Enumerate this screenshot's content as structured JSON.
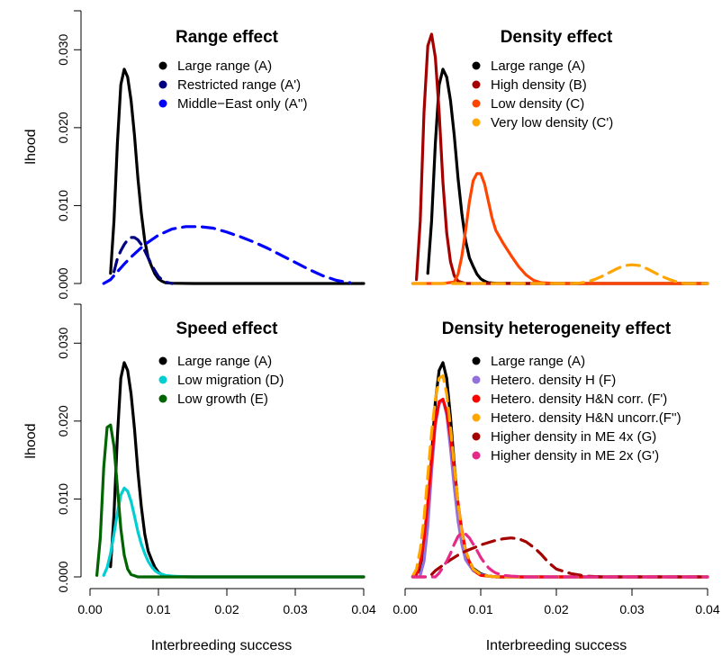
{
  "x_axis_label": "Interbreeding success",
  "y_axis_label": "lhood",
  "chart_data": [
    {
      "type": "line",
      "title": "Range effect",
      "xlabel": "",
      "ylabel": "lhood",
      "xlim": [
        0,
        0.04
      ],
      "ylim": [
        0,
        0.035
      ],
      "x_ticks": [
        "0.00",
        "0.01",
        "0.02",
        "0.03",
        "0.04"
      ],
      "x_tick_values": [
        0,
        0.01,
        0.02,
        0.03,
        0.04
      ],
      "y_ticks": [
        "0.000",
        "0.010",
        "0.020",
        "0.030"
      ],
      "y_tick_values": [
        0,
        0.01,
        0.02,
        0.03
      ],
      "legend": "top-right",
      "series": [
        {
          "name": "Large range (A)",
          "color": "#000000",
          "dash": "solid",
          "x": [
            0.003,
            0.0035,
            0.004,
            0.0045,
            0.005,
            0.0055,
            0.006,
            0.0065,
            0.007,
            0.0075,
            0.008,
            0.0085,
            0.009,
            0.0095,
            0.01,
            0.0105,
            0.011,
            0.012,
            0.015,
            0.02,
            0.03,
            0.04
          ],
          "y": [
            0.0013,
            0.008,
            0.018,
            0.0255,
            0.0275,
            0.0265,
            0.0235,
            0.019,
            0.0135,
            0.009,
            0.0055,
            0.0033,
            0.0022,
            0.0012,
            0.0006,
            0.0003,
            0.0001,
            3e-05,
            0,
            0,
            0,
            0
          ]
        },
        {
          "name": "Restricted range (A')",
          "color": "#000080",
          "dash": "dashed",
          "x": [
            0.0035,
            0.004,
            0.0045,
            0.005,
            0.0055,
            0.006,
            0.0065,
            0.007,
            0.0075,
            0.008,
            0.0085,
            0.009,
            0.0095,
            0.01,
            0.0105,
            0.011,
            0.012
          ],
          "y": [
            0.0015,
            0.0032,
            0.0042,
            0.005,
            0.0056,
            0.0059,
            0.0059,
            0.0056,
            0.005,
            0.0042,
            0.0033,
            0.0024,
            0.0016,
            0.0009,
            0.0005,
            0.0002,
            0
          ]
        },
        {
          "name": "Middle−East only (A'')",
          "color": "#0000FF",
          "dash": "dashed",
          "x": [
            0.002,
            0.003,
            0.004,
            0.005,
            0.006,
            0.008,
            0.01,
            0.012,
            0.014,
            0.016,
            0.018,
            0.02,
            0.022,
            0.024,
            0.026,
            0.028,
            0.03,
            0.032,
            0.034,
            0.036,
            0.038
          ],
          "y": [
            0,
            0.0005,
            0.0015,
            0.0025,
            0.0034,
            0.005,
            0.0062,
            0.007,
            0.0073,
            0.0073,
            0.0071,
            0.0066,
            0.006,
            0.0053,
            0.0045,
            0.0036,
            0.0027,
            0.0018,
            0.001,
            0.0004,
            0.0001
          ]
        }
      ]
    },
    {
      "type": "line",
      "title": "Density effect",
      "xlabel": "",
      "ylabel": "",
      "xlim": [
        0,
        0.04
      ],
      "ylim": [
        0,
        0.035
      ],
      "x_ticks": [
        "0.00",
        "0.01",
        "0.02",
        "0.03",
        "0.04"
      ],
      "x_tick_values": [
        0,
        0.01,
        0.02,
        0.03,
        0.04
      ],
      "y_ticks": [
        "0.000",
        "0.010",
        "0.020",
        "0.030"
      ],
      "y_tick_values": [
        0,
        0.01,
        0.02,
        0.03
      ],
      "legend": "top-right",
      "series": [
        {
          "name": "Large range (A)",
          "color": "#000000",
          "dash": "solid",
          "x": [
            0.003,
            0.0035,
            0.004,
            0.0045,
            0.005,
            0.0055,
            0.006,
            0.0065,
            0.007,
            0.0075,
            0.008,
            0.0085,
            0.009,
            0.0095,
            0.01,
            0.0105,
            0.011,
            0.012,
            0.015,
            0.02,
            0.03,
            0.04
          ],
          "y": [
            0.0013,
            0.008,
            0.018,
            0.0255,
            0.0275,
            0.0265,
            0.0235,
            0.019,
            0.0135,
            0.009,
            0.0055,
            0.0033,
            0.0022,
            0.0012,
            0.0006,
            0.0003,
            0.0001,
            3e-05,
            0,
            0,
            0,
            0
          ]
        },
        {
          "name": "High density (B)",
          "color": "#A50000",
          "dash": "solid",
          "x": [
            0.0015,
            0.002,
            0.0025,
            0.003,
            0.0035,
            0.004,
            0.0045,
            0.005,
            0.0055,
            0.006,
            0.0065,
            0.007,
            0.008,
            0.009,
            0.012,
            0.04
          ],
          "y": [
            0.0005,
            0.008,
            0.022,
            0.0305,
            0.032,
            0.029,
            0.022,
            0.013,
            0.0065,
            0.0028,
            0.001,
            0.0003,
            0,
            0,
            0,
            0
          ]
        },
        {
          "name": "Low density (C)",
          "color": "#FF4500",
          "dash": "solid",
          "x": [
            0.001,
            0.005,
            0.0065,
            0.007,
            0.0075,
            0.008,
            0.0085,
            0.009,
            0.0095,
            0.01,
            0.0105,
            0.011,
            0.0115,
            0.012,
            0.013,
            0.014,
            0.015,
            0.016,
            0.017,
            0.018,
            0.02,
            0.04
          ],
          "y": [
            0,
            0,
            0.0002,
            0.0012,
            0.0035,
            0.0068,
            0.0105,
            0.0132,
            0.0141,
            0.0141,
            0.0128,
            0.0106,
            0.0084,
            0.0068,
            0.0051,
            0.0036,
            0.0022,
            0.0011,
            0.0004,
            0.0001,
            0,
            0
          ]
        },
        {
          "name": "Very low density (C')",
          "color": "#FFA500",
          "dash": "dashed",
          "x": [
            0.001,
            0.022,
            0.023,
            0.024,
            0.025,
            0.026,
            0.027,
            0.028,
            0.029,
            0.03,
            0.031,
            0.032,
            0.033,
            0.034,
            0.035,
            0.036,
            0.037,
            0.04
          ],
          "y": [
            0,
            0,
            5e-05,
            0.0002,
            0.0005,
            0.0009,
            0.0014,
            0.0019,
            0.0023,
            0.0024,
            0.0023,
            0.0019,
            0.0014,
            0.0009,
            0.0005,
            0.0002,
            0,
            0
          ]
        }
      ]
    },
    {
      "type": "line",
      "title": "Speed effect",
      "xlabel": "Interbreeding success",
      "ylabel": "lhood",
      "xlim": [
        0,
        0.04
      ],
      "ylim": [
        0,
        0.035
      ],
      "x_ticks": [
        "0.00",
        "0.01",
        "0.02",
        "0.03",
        "0.04"
      ],
      "x_tick_values": [
        0,
        0.01,
        0.02,
        0.03,
        0.04
      ],
      "y_ticks": [
        "0.000",
        "0.010",
        "0.020",
        "0.030"
      ],
      "y_tick_values": [
        0,
        0.01,
        0.02,
        0.03
      ],
      "legend": "top-right",
      "series": [
        {
          "name": "Large range (A)",
          "color": "#000000",
          "dash": "solid",
          "x": [
            0.003,
            0.0035,
            0.004,
            0.0045,
            0.005,
            0.0055,
            0.006,
            0.0065,
            0.007,
            0.0075,
            0.008,
            0.0085,
            0.009,
            0.0095,
            0.01,
            0.0105,
            0.011,
            0.012,
            0.015,
            0.02,
            0.03,
            0.04
          ],
          "y": [
            0.0013,
            0.008,
            0.018,
            0.0255,
            0.0275,
            0.0265,
            0.0235,
            0.019,
            0.0135,
            0.009,
            0.0055,
            0.0033,
            0.0022,
            0.0012,
            0.0006,
            0.0003,
            0.0001,
            3e-05,
            0,
            0,
            0,
            0
          ]
        },
        {
          "name": "Low migration (D)",
          "color": "#00CED1",
          "dash": "solid",
          "x": [
            0.002,
            0.0025,
            0.003,
            0.0035,
            0.004,
            0.0045,
            0.005,
            0.0055,
            0.006,
            0.0065,
            0.007,
            0.0075,
            0.008,
            0.0085,
            0.009,
            0.0095,
            0.01,
            0.011,
            0.012,
            0.014,
            0.02,
            0.04
          ],
          "y": [
            0.0002,
            0.0012,
            0.003,
            0.0055,
            0.0082,
            0.0105,
            0.0114,
            0.011,
            0.0097,
            0.0078,
            0.0058,
            0.0042,
            0.003,
            0.002,
            0.0013,
            0.0008,
            0.0005,
            0.0002,
            0.0001,
            0,
            0,
            0
          ]
        },
        {
          "name": "Low growth (E)",
          "color": "#006400",
          "dash": "solid",
          "x": [
            0.001,
            0.0015,
            0.002,
            0.0025,
            0.003,
            0.0035,
            0.004,
            0.0045,
            0.005,
            0.0055,
            0.006,
            0.007,
            0.008,
            0.01,
            0.02,
            0.04
          ],
          "y": [
            0.0002,
            0.005,
            0.014,
            0.0192,
            0.0195,
            0.0168,
            0.0115,
            0.0062,
            0.0028,
            0.001,
            0.0003,
            0,
            0,
            0,
            0,
            0
          ]
        }
      ]
    },
    {
      "type": "line",
      "title": "Density heterogeneity effect",
      "xlabel": "Interbreeding success",
      "ylabel": "",
      "xlim": [
        0,
        0.04
      ],
      "ylim": [
        0,
        0.035
      ],
      "x_ticks": [
        "0.00",
        "0.01",
        "0.02",
        "0.03",
        "0.04"
      ],
      "x_tick_values": [
        0,
        0.01,
        0.02,
        0.03,
        0.04
      ],
      "y_ticks": [
        "0.000",
        "0.010",
        "0.020",
        "0.030"
      ],
      "y_tick_values": [
        0,
        0.01,
        0.02,
        0.03
      ],
      "legend": "top-right",
      "series": [
        {
          "name": "Large range (A)",
          "color": "#000000",
          "dash": "solid",
          "x": [
            0.002,
            0.0025,
            0.003,
            0.0035,
            0.004,
            0.0045,
            0.005,
            0.0055,
            0.006,
            0.0065,
            0.007,
            0.0075,
            0.008,
            0.009,
            0.01,
            0.011,
            0.012,
            0.015,
            0.04
          ],
          "y": [
            0.0005,
            0.003,
            0.008,
            0.0155,
            0.0225,
            0.0265,
            0.0275,
            0.0255,
            0.0205,
            0.0145,
            0.0092,
            0.0053,
            0.0028,
            0.0011,
            0.0004,
            0.0001,
            0,
            0,
            0
          ]
        },
        {
          "name": "Hetero. density H (F)",
          "color": "#9370DB",
          "dash": "solid",
          "x": [
            0.002,
            0.0025,
            0.003,
            0.0035,
            0.004,
            0.0045,
            0.005,
            0.0055,
            0.006,
            0.0065,
            0.007,
            0.0075,
            0.008,
            0.009,
            0.01,
            0.011,
            0.012,
            0.015,
            0.04
          ],
          "y": [
            0.0002,
            0.002,
            0.0065,
            0.0135,
            0.0195,
            0.0222,
            0.0228,
            0.0208,
            0.0165,
            0.0115,
            0.0072,
            0.0042,
            0.0022,
            0.0008,
            0.0003,
            0.0001,
            0,
            0,
            0
          ]
        },
        {
          "name": "Hetero. density H&N corr. (F')",
          "color": "#FF0000",
          "dash": "solid",
          "x": [
            0.0015,
            0.002,
            0.0025,
            0.003,
            0.0035,
            0.004,
            0.0045,
            0.005,
            0.0055,
            0.006,
            0.0065,
            0.007,
            0.0075,
            0.008,
            0.0085,
            0.009,
            0.0095,
            0.01,
            0.011,
            0.012,
            0.015,
            0.04
          ],
          "y": [
            0.0003,
            0.0018,
            0.0048,
            0.0095,
            0.015,
            0.02,
            0.0225,
            0.0228,
            0.0212,
            0.018,
            0.0138,
            0.0095,
            0.006,
            0.0034,
            0.0019,
            0.001,
            0.0005,
            0.0002,
            0.0001,
            0,
            0,
            0
          ]
        },
        {
          "name": "Hetero. density H&N uncorr.(F'')",
          "color": "#FFA500",
          "dash": "dashed",
          "x": [
            0.001,
            0.0015,
            0.002,
            0.0025,
            0.003,
            0.0035,
            0.004,
            0.0045,
            0.005,
            0.0055,
            0.006,
            0.0065,
            0.007,
            0.0075,
            0.008,
            0.009,
            0.01,
            0.011,
            0.012,
            0.015,
            0.04
          ],
          "y": [
            0.0001,
            0.001,
            0.0035,
            0.0075,
            0.013,
            0.0185,
            0.0228,
            0.0255,
            0.0258,
            0.0235,
            0.0192,
            0.0142,
            0.0095,
            0.0058,
            0.0033,
            0.001,
            0.0003,
            0.0001,
            0,
            0,
            0
          ]
        },
        {
          "name": "Higher density in ME 4x (G)",
          "color": "#A50000",
          "dash": "dashed",
          "x": [
            0.001,
            0.003,
            0.0035,
            0.004,
            0.005,
            0.006,
            0.007,
            0.008,
            0.009,
            0.01,
            0.011,
            0.012,
            0.013,
            0.014,
            0.015,
            0.016,
            0.017,
            0.018,
            0.019,
            0.02,
            0.022,
            0.024,
            0.026,
            0.03,
            0.04
          ],
          "y": [
            0,
            0,
            0.0003,
            0.0008,
            0.0015,
            0.0022,
            0.0028,
            0.0033,
            0.0037,
            0.0041,
            0.0044,
            0.0047,
            0.0049,
            0.005,
            0.0049,
            0.0045,
            0.0038,
            0.0029,
            0.0018,
            0.001,
            0.0004,
            0.0001,
            0,
            0,
            0
          ]
        },
        {
          "name": "Higher density in ME 2x (G')",
          "color": "#E62A8A",
          "dash": "dashed",
          "x": [
            0.001,
            0.004,
            0.0045,
            0.005,
            0.0055,
            0.006,
            0.0065,
            0.007,
            0.0075,
            0.008,
            0.0085,
            0.009,
            0.0095,
            0.01,
            0.0105,
            0.011,
            0.0115,
            0.012,
            0.013,
            0.014,
            0.016,
            0.04
          ],
          "y": [
            0,
            0,
            0.0005,
            0.0012,
            0.002,
            0.003,
            0.0042,
            0.0052,
            0.0057,
            0.0055,
            0.005,
            0.0042,
            0.0034,
            0.0025,
            0.0018,
            0.0012,
            0.0008,
            0.0005,
            0.0002,
            0.0001,
            0,
            0
          ]
        }
      ]
    }
  ]
}
